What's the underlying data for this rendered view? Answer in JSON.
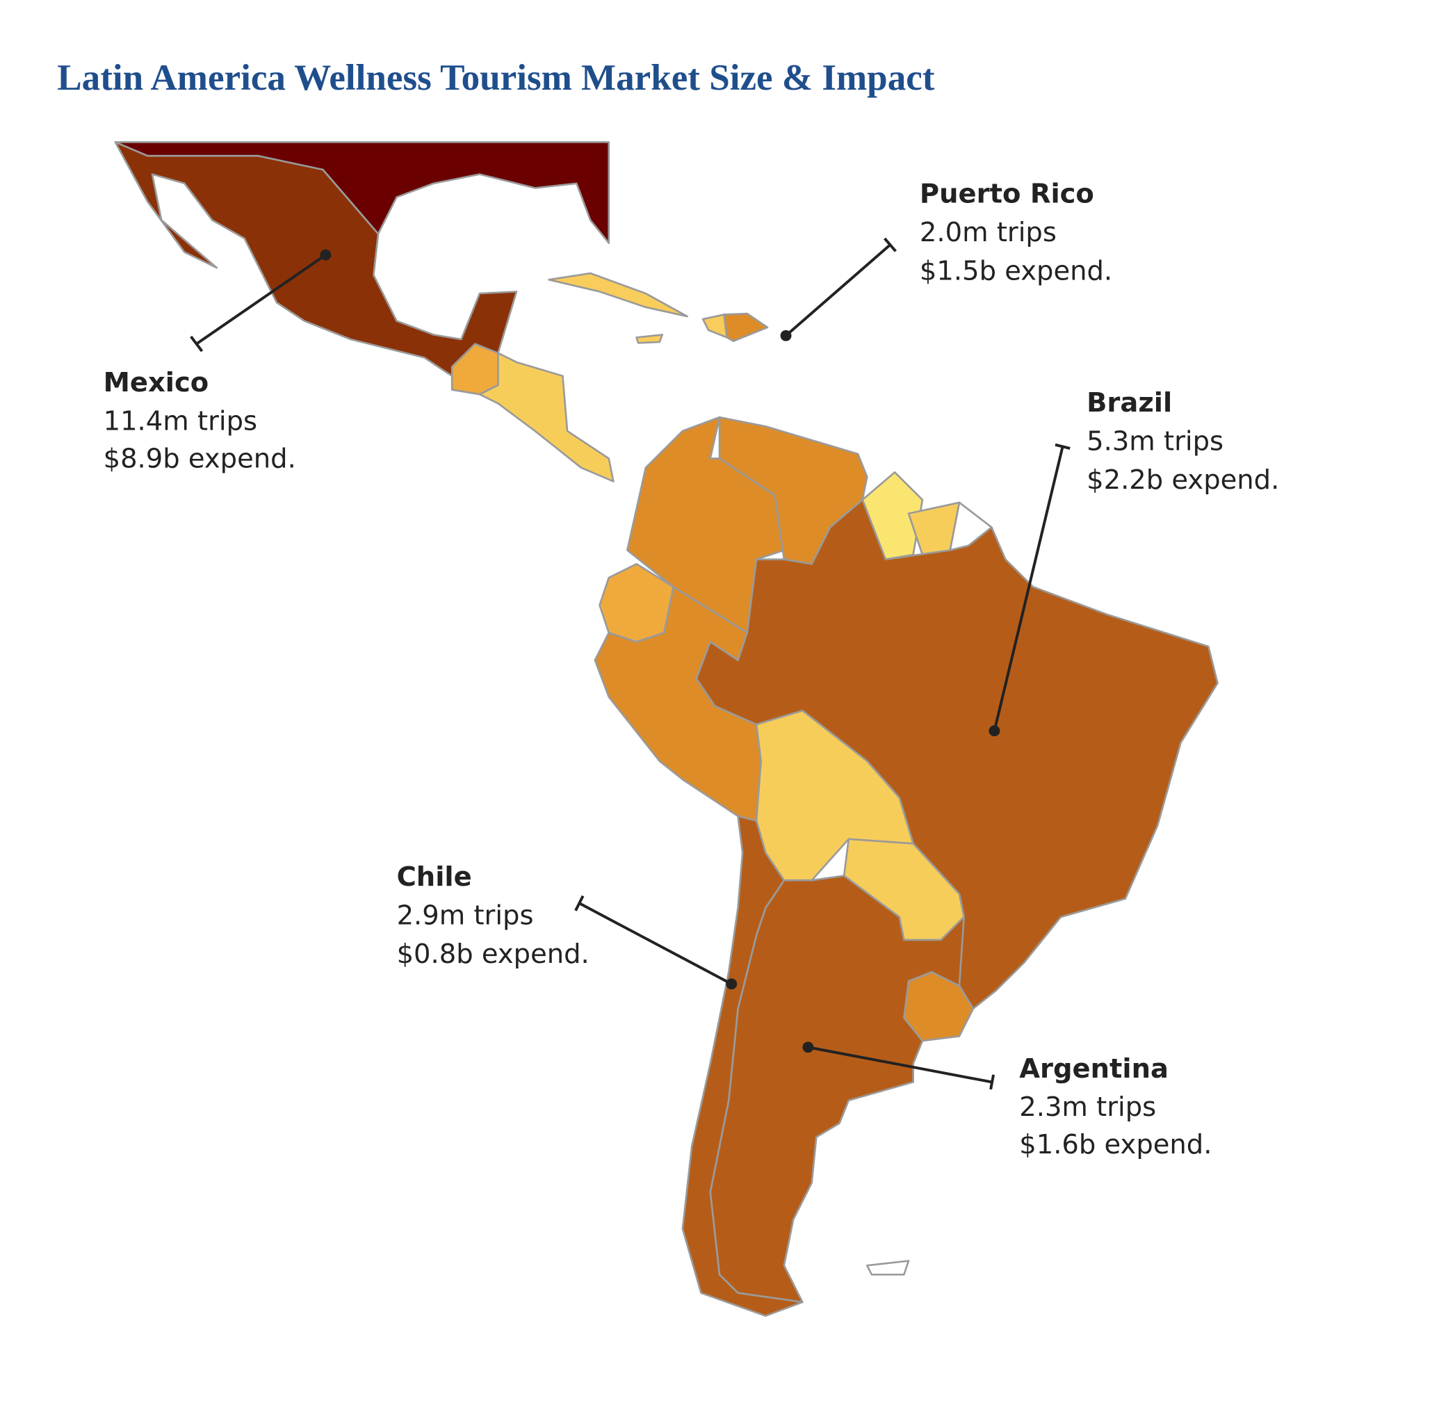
{
  "title": "Latin America Wellness Tourism Market Size & Impact",
  "callouts": [
    {
      "name": "Mexico",
      "trips": "11.4m trips",
      "expend": "$8.9b expend."
    },
    {
      "name": "Puerto Rico",
      "trips": "2.0m trips",
      "expend": "$1.5b expend."
    },
    {
      "name": "Brazil",
      "trips": "5.3m trips",
      "expend": "$2.2b expend."
    },
    {
      "name": "Chile",
      "trips": "2.9m trips",
      "expend": "$0.8b expend."
    },
    {
      "name": "Argentina",
      "trips": "2.3m trips",
      "expend": "$1.6b expend."
    }
  ]
}
